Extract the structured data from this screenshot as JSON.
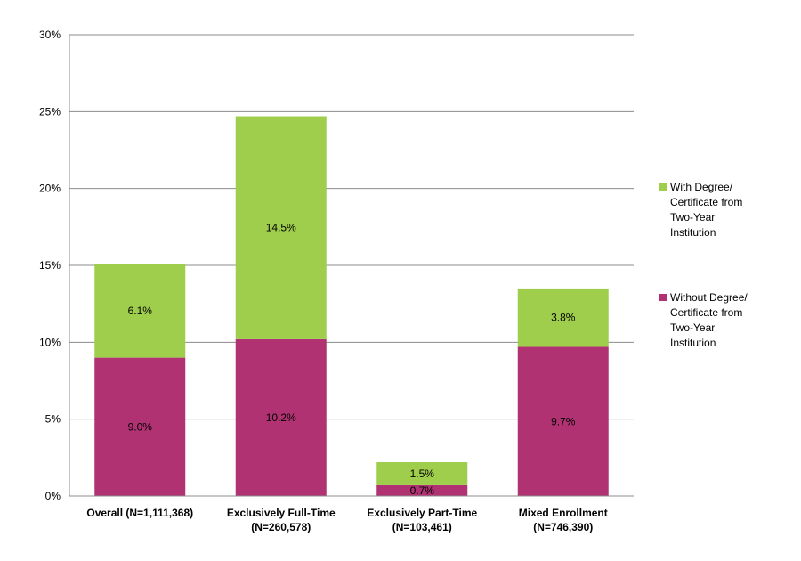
{
  "chart_data": {
    "type": "bar",
    "stacked": true,
    "categories": [
      [
        "Overall (N=1,111,368)"
      ],
      [
        "Exclusively Full-Time",
        "(N=260,578)"
      ],
      [
        "Exclusively Part-Time",
        "(N=103,461)"
      ],
      [
        "Mixed Enrollment",
        "(N=746,390)"
      ]
    ],
    "series": [
      {
        "name": "Without Degree/ Certificate from Two-Year Institution",
        "name_lines": [
          "Without Degree/",
          "Certificate from",
          "Two-Year",
          "Institution"
        ],
        "color": "#b03272",
        "values": [
          9.0,
          10.2,
          0.7,
          9.7
        ],
        "labels": [
          "9.0%",
          "10.2%",
          "0.7%",
          "9.7%"
        ]
      },
      {
        "name": "With Degree/ Certificate from Two-Year Institution",
        "name_lines": [
          "With Degree/",
          "Certificate from",
          "Two-Year",
          "Institution"
        ],
        "color": "#9fce4c",
        "values": [
          6.1,
          14.5,
          1.5,
          3.8
        ],
        "labels": [
          "6.1%",
          "14.5%",
          "1.5%",
          "3.8%"
        ]
      }
    ],
    "title": "",
    "xlabel": "",
    "ylabel": "",
    "ylim": [
      0,
      30
    ],
    "yticks": [
      "0%",
      "5%",
      "10%",
      "15%",
      "20%",
      "25%",
      "30%"
    ],
    "grid": true,
    "legend_position": "right"
  }
}
